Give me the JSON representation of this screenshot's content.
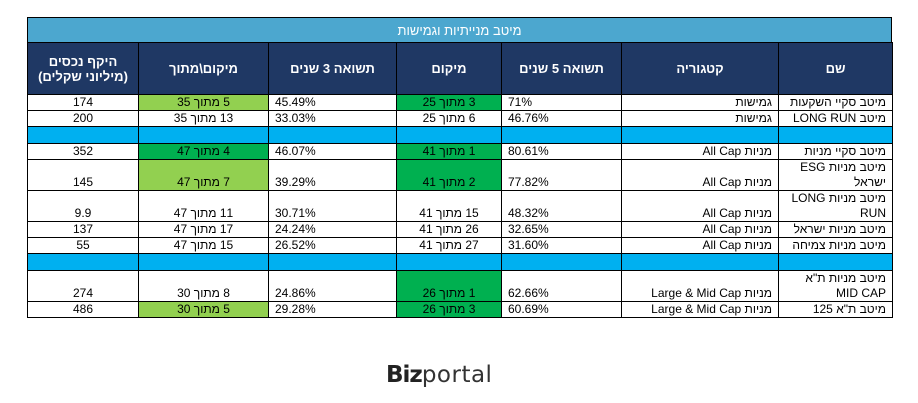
{
  "title": "מיטב מנייתיות וגמישות",
  "headers": {
    "name": "שם",
    "category": "קטגוריה",
    "return5": "תשואה 5 שנים",
    "rank5": "מיקום",
    "return3": "תשואה 3 שנים",
    "rank3": "מיקום\\מתוך",
    "size": "היקף נכסים (מיליוני שקלים)"
  },
  "groups": [
    {
      "rows": [
        {
          "name": "מיטב סקיי השקעות",
          "category": "גמישות",
          "return5": "71%",
          "rank5": "3 מתוך 25",
          "rank5_hl": "dark",
          "return3": "45.49%",
          "rank3": "5 מתוך 35",
          "rank3_hl": "light",
          "size": "174"
        },
        {
          "name": "מיטב LONG RUN",
          "category": "גמישות",
          "return5": "46.76%",
          "rank5": "6 מתוך 25",
          "rank5_hl": "",
          "return3": "33.03%",
          "rank3": "13 מתוך 35",
          "rank3_hl": "",
          "size": "200"
        }
      ]
    },
    {
      "rows": [
        {
          "name": "מיטב סקיי מניות",
          "category": "מניות All Cap",
          "return5": "80.61%",
          "rank5": "1 מתוך 41",
          "rank5_hl": "dark",
          "return3": "46.07%",
          "rank3": "4 מתוך 47",
          "rank3_hl": "dark",
          "size": "352"
        },
        {
          "name": "מיטב מניות ESG ישראל",
          "category": "מניות All Cap",
          "return5": "77.82%",
          "rank5": "2 מתוך 41",
          "rank5_hl": "dark",
          "return3": "39.29%",
          "rank3": "7 מתוך 47",
          "rank3_hl": "light",
          "size": "145",
          "tall": true
        },
        {
          "name": "מיטב מניות LONG RUN",
          "category": "מניות All Cap",
          "return5": "48.32%",
          "rank5": "15 מתוך 41",
          "rank5_hl": "",
          "return3": "30.71%",
          "rank3": "11 מתוך 47",
          "rank3_hl": "",
          "size": "9.9",
          "tall": true
        },
        {
          "name": "מיטב מניות ישראל",
          "category": "מניות All Cap",
          "return5": "32.65%",
          "rank5": "26 מתוך 41",
          "rank5_hl": "",
          "return3": "24.24%",
          "rank3": "17 מתוך 47",
          "rank3_hl": "",
          "size": "137"
        },
        {
          "name": "מיטב מניות צמיחה",
          "category": "מניות All Cap",
          "return5": "31.60%",
          "rank5": "27 מתוך 41",
          "rank5_hl": "",
          "return3": "26.52%",
          "rank3": "15 מתוך 47",
          "rank3_hl": "",
          "size": "55"
        }
      ]
    },
    {
      "rows": [
        {
          "name": "מיטב מניות ת\"א MID CAP",
          "category": "מניות Large & Mid Cap",
          "return5": "62.66%",
          "rank5": "1 מתוך 26",
          "rank5_hl": "dark",
          "return3": "24.86%",
          "rank3": "8 מתוך 30",
          "rank3_hl": "",
          "size": "274",
          "tall": true
        },
        {
          "name": "מיטב ת\"א 125",
          "category": "מניות Large & Mid Cap",
          "return5": "60.69%",
          "rank5": "3 מתוך 26",
          "rank5_hl": "dark",
          "return3": "29.28%",
          "rank3": "5 מתוך 30",
          "rank3_hl": "light",
          "size": "486"
        }
      ]
    }
  ],
  "logo": {
    "bold": "Biz",
    "light": "portal"
  },
  "colors": {
    "title_bg": "#4ca7cf",
    "header_bg": "#1f3864",
    "separator": "#00b0f0",
    "green_dark": "#00b050",
    "green_light": "#92d050"
  }
}
